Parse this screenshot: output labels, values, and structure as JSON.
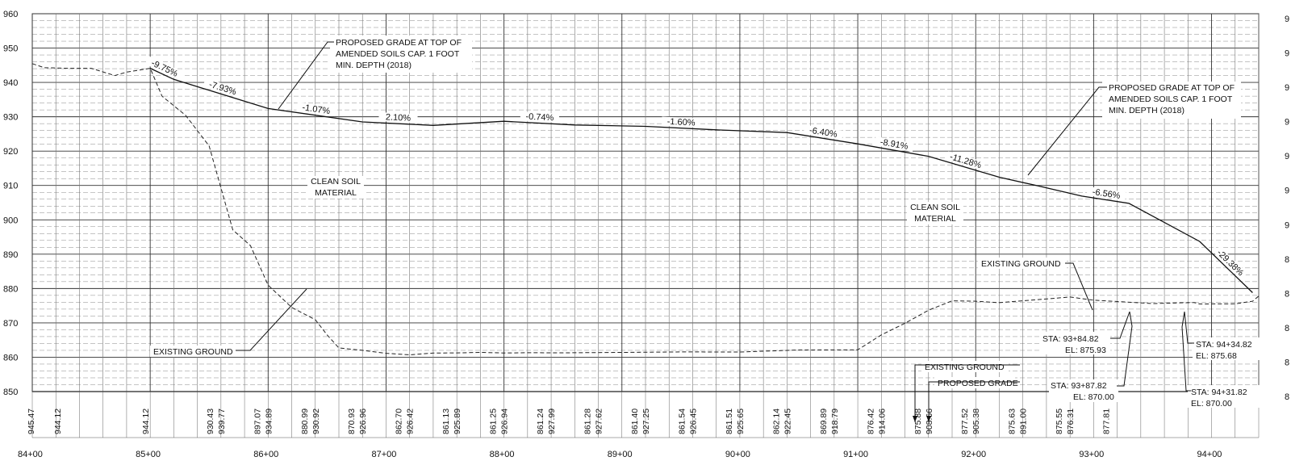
{
  "elevation_axis": {
    "labels": [
      "960",
      "950",
      "940",
      "930",
      "920",
      "910",
      "900",
      "890",
      "880",
      "870",
      "860",
      "850"
    ],
    "right_edge_labels": [
      "9",
      "9",
      "9",
      "9",
      "9",
      "9",
      "9",
      "8",
      "8",
      "8",
      "8",
      "8"
    ]
  },
  "station_axis": {
    "labels": [
      "84+00",
      "85+00",
      "86+00",
      "87+00",
      "88+00",
      "89+00",
      "90+00",
      "91+00",
      "92+00",
      "93+00",
      "94+00"
    ],
    "visible_text": [
      "84+00",
      "85+00",
      "86+00",
      "87+00",
      "88+00",
      "89+00",
      "90+00",
      "91+00",
      "92+00",
      "93+00",
      "94+00"
    ]
  },
  "bottom_values": [
    "945.47",
    "944.12",
    "944.12",
    "930.43",
    "939.77",
    "897.07",
    "934.89",
    "880.99",
    "930.92",
    "870.93",
    "926.96",
    "862.70",
    "926.42",
    "861.13",
    "925.89",
    "861.25",
    "926.94",
    "861.24",
    "927.99",
    "861.28",
    "927.62",
    "861.40",
    "927.25",
    "861.54",
    "926.45",
    "861.51",
    "925.65",
    "862.14",
    "922.45",
    "869.89",
    "918.79",
    "876.42",
    "914.06",
    "875.88",
    "908.66",
    "877.52",
    "905.38",
    "875.63",
    "891.00",
    "875.55",
    "876.31",
    "877.81"
  ],
  "slopes": [
    "-9.75%",
    "-7.93%",
    "-1.07%",
    "2.10%",
    "-0.74%",
    "-1.60%",
    "-6.40%",
    "-8.91%",
    "-11.28%",
    "-6.56%",
    "-29.38%"
  ],
  "notes": {
    "proposed_grade_left": [
      "PROPOSED GRADE AT TOP OF",
      "AMENDED SOILS CAP. 1 FOOT",
      "MIN. DEPTH (2018)"
    ],
    "proposed_grade_right": [
      "PROPOSED GRADE AT TOP OF",
      "AMENDED SOILS CAP. 1 FOOT",
      "MIN. DEPTH (2018)"
    ],
    "clean_soil_left": [
      "CLEAN SOIL",
      "MATERIAL"
    ],
    "clean_soil_right": [
      "CLEAN SOIL",
      "MATERIAL"
    ],
    "existing_ground_left": "EXISTING GROUND",
    "existing_ground_right": "EXISTING GROUND",
    "existing_ground_low": "EXISTING GROUND",
    "proposed_grade_low": "PROPOSED GRADE",
    "sta_a": [
      "STA: 93+84.82",
      "EL: 875.93"
    ],
    "sta_b": [
      "STA: 93+87.82",
      "EL: 870.00"
    ],
    "sta_c": [
      "STA: 94+34.82",
      "EL: 875.68"
    ],
    "sta_d": [
      "STA: 94+31.82",
      "EL: 870.00"
    ]
  },
  "chart_data": {
    "type": "line",
    "xlabel": "",
    "ylabel": "",
    "ylim": [
      850,
      960
    ],
    "xlim": [
      8400,
      9440
    ],
    "series": [
      {
        "station": [
          8400,
          8410,
          8430,
          8450,
          8470,
          8480,
          8500,
          8510,
          8530,
          8550,
          8570,
          8585,
          8600,
          8620,
          8640,
          8650,
          8660,
          8680,
          8700,
          8720,
          8740,
          8760,
          8780,
          8800,
          8820,
          8850,
          8900,
          8950,
          9000,
          9050,
          9100,
          9120,
          9140,
          9160,
          9180,
          9200,
          9220,
          9250,
          9280,
          9300,
          9350,
          9384.82,
          9390,
          9420,
          9434.82,
          9440
        ],
        "elevation": [
          945.47,
          944.3,
          944.1,
          944.12,
          942,
          943,
          944.12,
          936,
          930.43,
          921.5,
          897.07,
          892.5,
          880.99,
          874.5,
          870.93,
          866.5,
          862.7,
          862,
          861.13,
          860.7,
          861.2,
          861.25,
          861.4,
          861.24,
          861.3,
          861.28,
          861.4,
          861.54,
          861.51,
          862.1,
          862.14,
          866.5,
          869.89,
          873.7,
          876.42,
          876.3,
          875.88,
          876.7,
          877.52,
          876.6,
          875.63,
          875.93,
          875.5,
          875.55,
          876.31,
          877.81
        ]
      },
      {
        "station": [
          8500,
          8520,
          8600,
          8680,
          8740,
          8800,
          8860,
          8920,
          8980,
          9040,
          9100,
          9160,
          9220,
          9250,
          9290,
          9330,
          9390,
          9434.82
        ],
        "elevation": [
          944.12,
          940.9,
          932.4,
          928.5,
          927.5,
          928.7,
          927.6,
          927.2,
          926.2,
          925.4,
          922.1,
          918.5,
          912.4,
          910.1,
          906.9,
          904.8,
          893.7,
          878.8
        ]
      }
    ]
  }
}
